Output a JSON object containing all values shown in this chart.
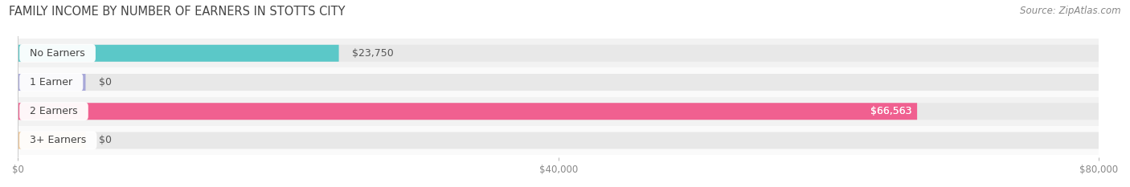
{
  "title": "FAMILY INCOME BY NUMBER OF EARNERS IN STOTTS CITY",
  "source": "Source: ZipAtlas.com",
  "categories": [
    "No Earners",
    "1 Earner",
    "2 Earners",
    "3+ Earners"
  ],
  "values": [
    23750,
    0,
    66563,
    0
  ],
  "bar_colors": [
    "#5bc8c8",
    "#a8a8d8",
    "#f06090",
    "#f0c898"
  ],
  "bar_bg_color": "#e8e8e8",
  "value_labels": [
    "$23,750",
    "$0",
    "$66,563",
    "$0"
  ],
  "value_inside": [
    false,
    false,
    true,
    false
  ],
  "xlim": [
    0,
    80000
  ],
  "xticks": [
    0,
    40000,
    80000
  ],
  "xticklabels": [
    "$0",
    "$40,000",
    "$80,000"
  ],
  "title_fontsize": 10.5,
  "source_fontsize": 8.5,
  "label_fontsize": 9,
  "tick_fontsize": 8.5,
  "bar_height": 0.58,
  "bg_color": "#ffffff",
  "row_bg_colors": [
    "#f2f2f2",
    "#fafafa",
    "#f2f2f2",
    "#fafafa"
  ],
  "nub_value": 5000
}
